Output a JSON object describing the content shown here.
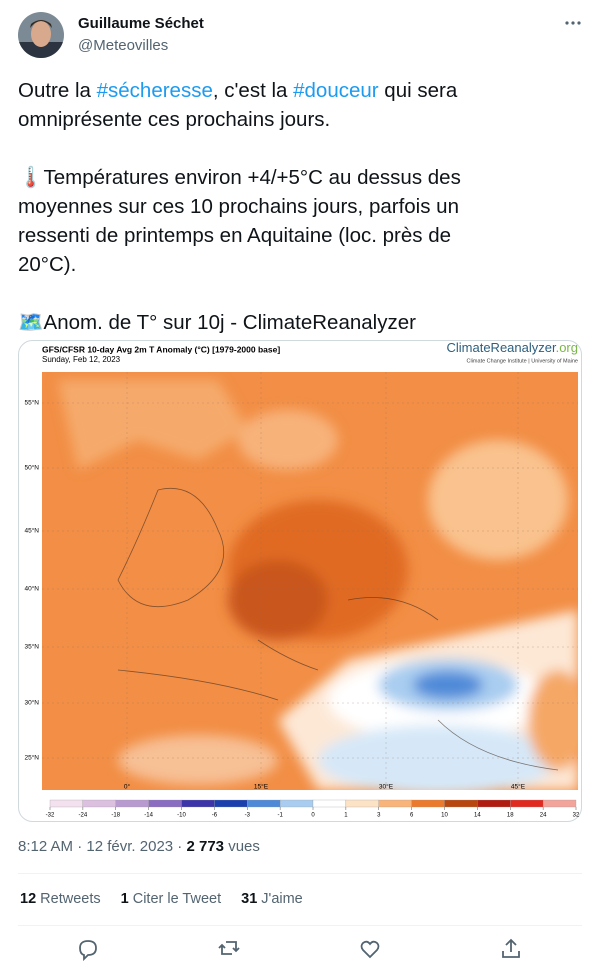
{
  "author": {
    "name": "Guillaume Séchet",
    "handle": "@Meteovilles"
  },
  "tweet": {
    "paragraphs": [
      [
        [
          "Outre la ",
          "#sécheresse",
          ", c'est la ",
          "#douceur",
          " qui sera"
        ],
        [
          "omniprésente ces prochains jours."
        ]
      ],
      [
        [
          "🌡️Températures environ +4/+5°C au dessus des"
        ],
        [
          "moyennes sur ces 10 prochains jours, parfois un"
        ],
        [
          "ressenti de printemps en Aquitaine (loc. près de"
        ],
        [
          "20°C)."
        ]
      ],
      [
        [
          "🗺️Anom. de T° sur 10j - ClimateReanalyzer"
        ]
      ]
    ]
  },
  "map": {
    "title": "GFS/CFSR 10-day Avg 2m T Anomaly (°C) [1979-2000 base]",
    "date": "Sunday, Feb 12, 2023",
    "brand": "ClimateReanalyzer",
    "brand_suffix": ".org",
    "institution": "Climate Change Institute | University of Maine",
    "lat_labels": [
      "55°N",
      "50°N",
      "45°N",
      "40°N",
      "35°N",
      "30°N",
      "25°N"
    ],
    "lon_labels": [
      "0°",
      "15°E",
      "30°E",
      "45°E"
    ],
    "colorbar": {
      "ticks": [
        -32,
        -24,
        -18,
        -14,
        -10,
        -6,
        -3,
        -1,
        0,
        1,
        3,
        6,
        10,
        14,
        18,
        24,
        32
      ],
      "colors": [
        "#f3e1ef",
        "#dcc0e0",
        "#b89ad0",
        "#8a6cc0",
        "#3c34a8",
        "#1c3fae",
        "#4f8ad8",
        "#a9cdf0",
        "#ffffff",
        "#fde3c6",
        "#f9b47a",
        "#ec7a2c",
        "#b8460f",
        "#b01c10",
        "#e02a20",
        "#f2a49a"
      ]
    }
  },
  "meta": {
    "time": "8:12 AM",
    "separator": "·",
    "date": "12 févr. 2023",
    "views": "2 773",
    "views_label": "vues"
  },
  "stats": [
    {
      "count": 12,
      "label": "Retweets"
    },
    {
      "count": 1,
      "label": "Citer le Tweet"
    },
    {
      "count": 31,
      "label": "J'aime"
    }
  ]
}
